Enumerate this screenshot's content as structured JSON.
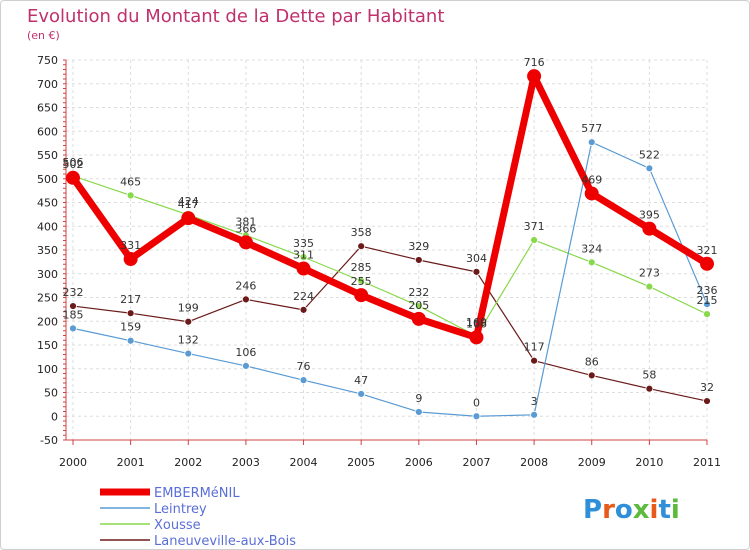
{
  "chart_data": {
    "type": "line",
    "title": "Evolution du Montant de la Dette par Habitant",
    "subtitle": "(en €)",
    "x": [
      "2000",
      "2001",
      "2002",
      "2003",
      "2004",
      "2005",
      "2006",
      "2007",
      "2008",
      "2009",
      "2010",
      "2011"
    ],
    "ylim": [
      -50,
      750
    ],
    "yticks": [
      -50,
      0,
      50,
      100,
      150,
      200,
      250,
      300,
      350,
      400,
      450,
      500,
      550,
      600,
      650,
      700,
      750
    ],
    "grid": true,
    "legend_position": "bottom-left",
    "series": [
      {
        "name": "Laneuveville-aux-Bois",
        "color": "#6b1a1a",
        "width": 1.2,
        "marker": 3.5,
        "values": [
          232,
          217,
          199,
          246,
          224,
          358,
          329,
          304,
          117,
          86,
          58,
          32
        ]
      },
      {
        "name": "Xousse",
        "color": "#88d84c",
        "width": 1.2,
        "marker": 3.5,
        "values": [
          506,
          465,
          424,
          381,
          335,
          285,
          232,
          169,
          371,
          324,
          273,
          215
        ]
      },
      {
        "name": "Leintrey",
        "color": "#5a9bd4",
        "width": 1.2,
        "marker": 3.5,
        "values": [
          185,
          159,
          132,
          106,
          76,
          47,
          9,
          0,
          3,
          577,
          522,
          236
        ]
      },
      {
        "name": "EMBERMéNIL",
        "color": "#ee0000",
        "width": 7,
        "marker": 7,
        "values": [
          502,
          331,
          417,
          366,
          311,
          255,
          205,
          166,
          716,
          469,
          395,
          321
        ]
      }
    ],
    "legend_order": [
      "EMBERMéNIL",
      "Leintrey",
      "Xousse",
      "Laneuveville-aux-Bois"
    ]
  },
  "brand": {
    "logo_text": "Proxiti"
  }
}
